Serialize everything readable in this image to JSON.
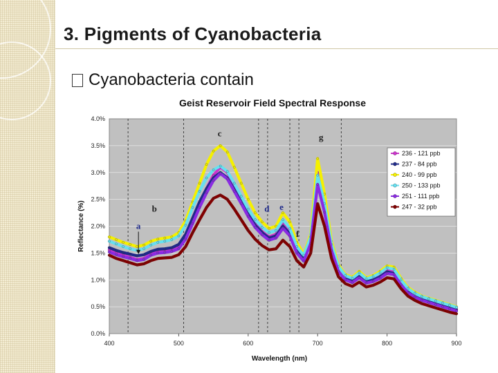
{
  "slide": {
    "title": "3. Pigments of Cyanobacteria",
    "bullet": "Cyanobacteria contain"
  },
  "chart_data": {
    "type": "line",
    "title": "Geist Reservoir Field Spectral Response",
    "xlabel": "Wavelength (nm)",
    "ylabel": "Reflectance (%)",
    "xlim": [
      400,
      900
    ],
    "ylim": [
      0,
      4.0
    ],
    "x_ticks": [
      "400",
      "500",
      "600",
      "700",
      "800",
      "900"
    ],
    "y_ticks": [
      "0.0%",
      "0.5%",
      "1.0%",
      "1.5%",
      "2.0%",
      "2.5%",
      "3.0%",
      "3.5%",
      "4.0%"
    ],
    "grid": "horizontal",
    "background": "#c0c0c0",
    "legend_position": "right",
    "reference_lines_nm": [
      427,
      507,
      615,
      628,
      660,
      673,
      734
    ],
    "annotations": [
      {
        "label": "a",
        "x": 442,
        "y": 1.95,
        "color": "#1f2a8a",
        "arrow_to_y": 1.48
      },
      {
        "label": "b",
        "x": 465,
        "y": 2.27,
        "color": "#222222"
      },
      {
        "label": "c",
        "x": 559,
        "y": 3.67,
        "color": "#222222"
      },
      {
        "label": "d",
        "x": 627,
        "y": 2.27,
        "color": "#1f2a8a"
      },
      {
        "label": "e",
        "x": 648,
        "y": 2.3,
        "color": "#1f2a8a"
      },
      {
        "label": "f",
        "x": 671,
        "y": 1.8,
        "color": "#222222"
      },
      {
        "label": "g",
        "x": 705,
        "y": 3.6,
        "color": "#222222"
      }
    ],
    "x": [
      400,
      410,
      420,
      430,
      440,
      450,
      460,
      470,
      480,
      490,
      500,
      510,
      520,
      530,
      540,
      550,
      560,
      570,
      580,
      590,
      600,
      610,
      620,
      630,
      640,
      650,
      660,
      670,
      680,
      690,
      700,
      710,
      720,
      730,
      740,
      750,
      760,
      770,
      780,
      790,
      800,
      810,
      820,
      830,
      840,
      850,
      860,
      870,
      880,
      890,
      900
    ],
    "series": [
      {
        "name": "236 - 121 ppb",
        "color": "#cc33cc",
        "marker": "square",
        "values": [
          1.56,
          1.5,
          1.46,
          1.42,
          1.38,
          1.4,
          1.48,
          1.52,
          1.53,
          1.55,
          1.62,
          1.8,
          2.1,
          2.4,
          2.7,
          2.95,
          3.1,
          3.0,
          2.75,
          2.5,
          2.25,
          2.05,
          1.9,
          1.8,
          1.85,
          2.05,
          1.9,
          1.55,
          1.38,
          1.75,
          3.0,
          2.4,
          1.6,
          1.2,
          1.02,
          0.98,
          1.08,
          0.97,
          1.0,
          1.07,
          1.17,
          1.15,
          0.95,
          0.8,
          0.72,
          0.66,
          0.62,
          0.58,
          0.54,
          0.5,
          0.46
        ]
      },
      {
        "name": "237 - 84 ppb",
        "color": "#1f2a8a",
        "marker": "diamond",
        "values": [
          1.6,
          1.55,
          1.51,
          1.48,
          1.45,
          1.47,
          1.53,
          1.57,
          1.58,
          1.6,
          1.66,
          1.85,
          2.15,
          2.45,
          2.7,
          2.9,
          3.0,
          2.9,
          2.68,
          2.45,
          2.22,
          2.02,
          1.88,
          1.78,
          1.82,
          2.0,
          1.86,
          1.55,
          1.4,
          1.7,
          2.82,
          2.3,
          1.58,
          1.18,
          1.02,
          0.98,
          1.07,
          0.97,
          1.0,
          1.06,
          1.15,
          1.12,
          0.93,
          0.78,
          0.7,
          0.64,
          0.6,
          0.56,
          0.52,
          0.48,
          0.44
        ]
      },
      {
        "name": "240 - 99 ppb",
        "color": "#f5f000",
        "marker": "triangle",
        "values": [
          1.8,
          1.75,
          1.7,
          1.66,
          1.62,
          1.65,
          1.72,
          1.76,
          1.78,
          1.8,
          1.88,
          2.1,
          2.45,
          2.8,
          3.15,
          3.4,
          3.5,
          3.38,
          3.1,
          2.8,
          2.5,
          2.25,
          2.08,
          1.96,
          2.0,
          2.25,
          2.08,
          1.7,
          1.48,
          1.85,
          3.26,
          2.6,
          1.72,
          1.28,
          1.1,
          1.05,
          1.16,
          1.04,
          1.08,
          1.16,
          1.26,
          1.24,
          1.03,
          0.86,
          0.77,
          0.7,
          0.66,
          0.62,
          0.58,
          0.54,
          0.5
        ]
      },
      {
        "name": "250 - 133 ppb",
        "color": "#66e0f0",
        "marker": "x",
        "values": [
          1.72,
          1.67,
          1.62,
          1.58,
          1.55,
          1.58,
          1.65,
          1.7,
          1.72,
          1.75,
          1.82,
          2.02,
          2.35,
          2.65,
          2.9,
          3.05,
          3.12,
          3.02,
          2.8,
          2.56,
          2.32,
          2.12,
          1.98,
          1.88,
          1.92,
          2.12,
          1.96,
          1.62,
          1.46,
          1.8,
          2.95,
          2.42,
          1.66,
          1.25,
          1.08,
          1.03,
          1.13,
          1.02,
          1.06,
          1.13,
          1.23,
          1.2,
          1.0,
          0.84,
          0.75,
          0.69,
          0.65,
          0.61,
          0.57,
          0.53,
          0.49
        ]
      },
      {
        "name": "251 - 111 ppb",
        "color": "#8a2be2",
        "marker": "asterisk",
        "values": [
          1.52,
          1.47,
          1.43,
          1.4,
          1.36,
          1.38,
          1.46,
          1.5,
          1.51,
          1.53,
          1.58,
          1.76,
          2.05,
          2.35,
          2.62,
          2.85,
          2.98,
          2.88,
          2.65,
          2.42,
          2.18,
          1.98,
          1.84,
          1.74,
          1.78,
          1.96,
          1.82,
          1.5,
          1.35,
          1.68,
          2.78,
          2.26,
          1.55,
          1.16,
          1.0,
          0.95,
          1.04,
          0.94,
          0.97,
          1.03,
          1.12,
          1.1,
          0.91,
          0.76,
          0.68,
          0.62,
          0.58,
          0.54,
          0.5,
          0.46,
          0.42
        ]
      },
      {
        "name": "247 - 32 ppb",
        "color": "#800000",
        "marker": "circle",
        "values": [
          1.46,
          1.4,
          1.36,
          1.32,
          1.28,
          1.3,
          1.36,
          1.4,
          1.41,
          1.42,
          1.47,
          1.62,
          1.88,
          2.12,
          2.35,
          2.52,
          2.58,
          2.5,
          2.32,
          2.12,
          1.92,
          1.76,
          1.64,
          1.56,
          1.58,
          1.74,
          1.62,
          1.36,
          1.24,
          1.5,
          2.42,
          2.0,
          1.4,
          1.06,
          0.93,
          0.88,
          0.96,
          0.87,
          0.9,
          0.96,
          1.04,
          1.02,
          0.84,
          0.7,
          0.62,
          0.56,
          0.52,
          0.48,
          0.44,
          0.4,
          0.37
        ]
      }
    ]
  }
}
